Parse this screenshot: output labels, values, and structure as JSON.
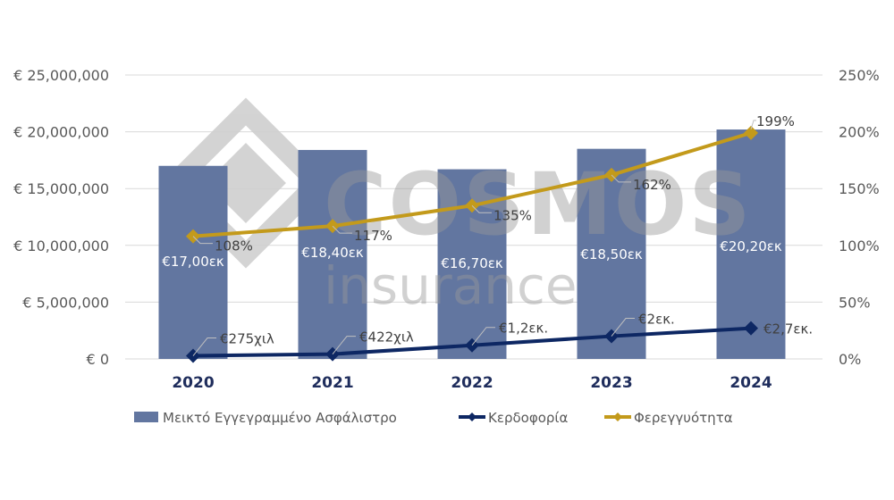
{
  "chart_data": {
    "type": "bar+line",
    "categories": [
      "2020",
      "2021",
      "2022",
      "2023",
      "2024"
    ],
    "series": [
      {
        "name": "Μεικτό Εγγεγραμμένο Ασφάλιστρο",
        "kind": "bar",
        "axis": "left",
        "color": "#6276a0",
        "values": [
          17000000,
          18400000,
          16700000,
          18500000,
          20200000
        ],
        "labels": [
          "€17,00εκ",
          "€18,40εκ",
          "€16,70εκ",
          "€18,50εκ",
          "€20,20εκ"
        ]
      },
      {
        "name": "Κερδοφορία",
        "kind": "line",
        "axis": "left",
        "color": "#0d2763",
        "values": [
          275000,
          422000,
          1200000,
          2000000,
          2700000
        ],
        "labels": [
          "€275χιλ",
          "€422χιλ",
          "€1,2εκ.",
          "€2εκ.",
          "€2,7εκ."
        ]
      },
      {
        "name": "Φερεγγυότητα",
        "kind": "line",
        "axis": "right",
        "color": "#c39a1b",
        "values": [
          108,
          117,
          135,
          162,
          199
        ],
        "labels": [
          "108%",
          "117%",
          "135%",
          "162%",
          "199%"
        ]
      }
    ],
    "y_left": {
      "range": [
        0,
        25000000
      ],
      "ticks": [
        0,
        5000000,
        10000000,
        15000000,
        20000000,
        25000000
      ],
      "tick_labels": [
        "€ 0",
        "€ 5,000,000",
        "€ 10,000,000",
        "€ 15,000,000",
        "€ 20,000,000",
        "€ 25,000,000"
      ]
    },
    "y_right": {
      "range": [
        0,
        250
      ],
      "ticks": [
        0,
        50,
        100,
        150,
        200,
        250
      ],
      "tick_labels": [
        "0%",
        "50%",
        "100%",
        "150%",
        "200%",
        "250%"
      ]
    },
    "grid": true,
    "legend_position": "bottom",
    "title": "",
    "xlabel": "",
    "ylabel": "",
    "watermark": {
      "brand": "COSMOS",
      "sub": "insurance"
    },
    "colors": {
      "grid": "#d9d9d9",
      "category_text": "#1f2d5c",
      "watermark": "#cfcfcf"
    }
  }
}
